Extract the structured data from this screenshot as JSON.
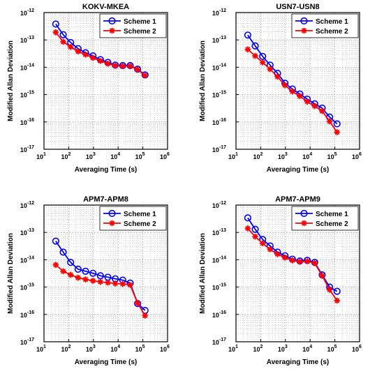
{
  "colors": {
    "scheme1": "#0000ff",
    "scheme2": "#ff0000",
    "grid": "#b0b0b0"
  },
  "chart_data": [
    {
      "type": "line",
      "title": "KOKV-MKEA",
      "xlabel": "Averaging Time (s)",
      "ylabel": "Modified Allan Deviation",
      "xscale": "log",
      "yscale": "log",
      "xlim": [
        10,
        1000000
      ],
      "ylim": [
        1e-17,
        1e-12
      ],
      "grid": true,
      "legend_position": "top-right",
      "x_ticks": [
        {
          "base": "10",
          "exp": "1"
        },
        {
          "base": "10",
          "exp": "2"
        },
        {
          "base": "10",
          "exp": "3"
        },
        {
          "base": "10",
          "exp": "4"
        },
        {
          "base": "10",
          "exp": "5"
        },
        {
          "base": "10",
          "exp": "6"
        }
      ],
      "y_ticks": [
        {
          "base": "10",
          "exp": "-17"
        },
        {
          "base": "10",
          "exp": "-16"
        },
        {
          "base": "10",
          "exp": "-15"
        },
        {
          "base": "10",
          "exp": "-14"
        },
        {
          "base": "10",
          "exp": "-13"
        },
        {
          "base": "10",
          "exp": "-12"
        }
      ],
      "x": [
        30,
        60,
        120,
        240,
        480,
        960,
        1920,
        3840,
        7680,
        15360,
        30720,
        61440,
        122880
      ],
      "series": [
        {
          "name": "Scheme 1",
          "marker": "circle",
          "values": [
            3.8e-13,
            1.55e-13,
            8e-14,
            4.8e-14,
            3.4e-14,
            2.6e-14,
            1.9e-14,
            1.5e-14,
            1.2e-14,
            1.15e-14,
            1.15e-14,
            8.5e-15,
            5.2e-15
          ]
        },
        {
          "name": "Scheme 2",
          "marker": "star",
          "values": [
            1.9e-13,
            8.5e-14,
            5.5e-14,
            3.8e-14,
            2.9e-14,
            2.2e-14,
            1.7e-14,
            1.35e-14,
            1.15e-14,
            1.1e-14,
            1.1e-14,
            8.2e-15,
            5e-15
          ]
        }
      ]
    },
    {
      "type": "line",
      "title": "USN7-USN8",
      "xlabel": "Averaging Time (s)",
      "ylabel": "Modified Allan Deviation",
      "xscale": "log",
      "yscale": "log",
      "xlim": [
        10,
        1000000
      ],
      "ylim": [
        1e-17,
        1e-12
      ],
      "grid": true,
      "legend_position": "top-right",
      "x_ticks": [
        {
          "base": "10",
          "exp": "1"
        },
        {
          "base": "10",
          "exp": "2"
        },
        {
          "base": "10",
          "exp": "3"
        },
        {
          "base": "10",
          "exp": "4"
        },
        {
          "base": "10",
          "exp": "5"
        },
        {
          "base": "10",
          "exp": "6"
        }
      ],
      "y_ticks": [
        {
          "base": "10",
          "exp": "-17"
        },
        {
          "base": "10",
          "exp": "-16"
        },
        {
          "base": "10",
          "exp": "-15"
        },
        {
          "base": "10",
          "exp": "-14"
        },
        {
          "base": "10",
          "exp": "-13"
        },
        {
          "base": "10",
          "exp": "-12"
        }
      ],
      "x": [
        30,
        60,
        120,
        240,
        480,
        960,
        1920,
        3840,
        7680,
        15360,
        30720,
        61440,
        122880
      ],
      "series": [
        {
          "name": "Scheme 1",
          "marker": "circle",
          "values": [
            1.5e-13,
            6e-14,
            2.5e-14,
            1.2e-14,
            6e-15,
            2.6e-15,
            1.6e-15,
            1.05e-15,
            6.8e-16,
            4.6e-16,
            3.2e-16,
            1.5e-16,
            8.5e-17
          ]
        },
        {
          "name": "Scheme 2",
          "marker": "star",
          "values": [
            4.5e-14,
            2.6e-14,
            1.5e-14,
            8.5e-15,
            4.5e-15,
            2.2e-15,
            1.3e-15,
            8.8e-16,
            5.5e-16,
            3.8e-16,
            2.5e-16,
            1.05e-16,
            4.2e-17
          ]
        }
      ]
    },
    {
      "type": "line",
      "title": "APM7-APM8",
      "xlabel": "Averaging Time (s)",
      "ylabel": "Modified Allan Deviation",
      "xscale": "log",
      "yscale": "log",
      "xlim": [
        10,
        1000000
      ],
      "ylim": [
        1e-17,
        1e-12
      ],
      "grid": true,
      "legend_position": "top-right",
      "x_ticks": [
        {
          "base": "10",
          "exp": "1"
        },
        {
          "base": "10",
          "exp": "2"
        },
        {
          "base": "10",
          "exp": "3"
        },
        {
          "base": "10",
          "exp": "4"
        },
        {
          "base": "10",
          "exp": "5"
        },
        {
          "base": "10",
          "exp": "6"
        }
      ],
      "y_ticks": [
        {
          "base": "10",
          "exp": "-17"
        },
        {
          "base": "10",
          "exp": "-16"
        },
        {
          "base": "10",
          "exp": "-15"
        },
        {
          "base": "10",
          "exp": "-14"
        },
        {
          "base": "10",
          "exp": "-13"
        },
        {
          "base": "10",
          "exp": "-12"
        }
      ],
      "x": [
        30,
        60,
        120,
        240,
        480,
        960,
        1920,
        3840,
        7680,
        15360,
        30720,
        61440,
        122880
      ],
      "series": [
        {
          "name": "Scheme 1",
          "marker": "circle",
          "values": [
            4.8e-14,
            1.9e-14,
            8e-15,
            4.5e-15,
            3.8e-15,
            3.2e-15,
            2.6e-15,
            2.3e-15,
            2e-15,
            1.8e-15,
            1.4e-15,
            2.5e-16,
            1.4e-16
          ]
        },
        {
          "name": "Scheme 2",
          "marker": "star",
          "values": [
            6.5e-15,
            3.8e-15,
            2.8e-15,
            2.2e-15,
            1.9e-15,
            1.7e-15,
            1.55e-15,
            1.45e-15,
            1.35e-15,
            1.3e-15,
            1.2e-15,
            2.6e-16,
            9e-17
          ]
        }
      ]
    },
    {
      "type": "line",
      "title": "APM7-APM9",
      "xlabel": "Averaging Time (s)",
      "ylabel": "Modified Allan Deviation",
      "xscale": "log",
      "yscale": "log",
      "xlim": [
        10,
        1000000
      ],
      "ylim": [
        1e-17,
        1e-12
      ],
      "grid": true,
      "legend_position": "top-right",
      "x_ticks": [
        {
          "base": "10",
          "exp": "1"
        },
        {
          "base": "10",
          "exp": "2"
        },
        {
          "base": "10",
          "exp": "3"
        },
        {
          "base": "10",
          "exp": "4"
        },
        {
          "base": "10",
          "exp": "5"
        },
        {
          "base": "10",
          "exp": "6"
        }
      ],
      "y_ticks": [
        {
          "base": "10",
          "exp": "-17"
        },
        {
          "base": "10",
          "exp": "-16"
        },
        {
          "base": "10",
          "exp": "-15"
        },
        {
          "base": "10",
          "exp": "-14"
        },
        {
          "base": "10",
          "exp": "-13"
        },
        {
          "base": "10",
          "exp": "-12"
        }
      ],
      "x": [
        30,
        60,
        120,
        240,
        480,
        960,
        1920,
        3840,
        7680,
        15360,
        30720,
        61440,
        122880
      ],
      "series": [
        {
          "name": "Scheme 1",
          "marker": "circle",
          "values": [
            3.4e-13,
            1.3e-13,
            5.5e-14,
            3.2e-14,
            1.9e-14,
            1.4e-14,
            1.05e-14,
            9e-15,
            9.5e-15,
            8e-15,
            2.8e-15,
            1e-15,
            7e-16
          ]
        },
        {
          "name": "Scheme 2",
          "marker": "star",
          "values": [
            1.4e-13,
            7e-14,
            4e-14,
            2.4e-14,
            1.6e-14,
            1.2e-14,
            9.5e-15,
            8.5e-15,
            8.8e-15,
            7.5e-15,
            2.6e-15,
            8e-16,
            3.2e-16
          ]
        }
      ]
    }
  ]
}
